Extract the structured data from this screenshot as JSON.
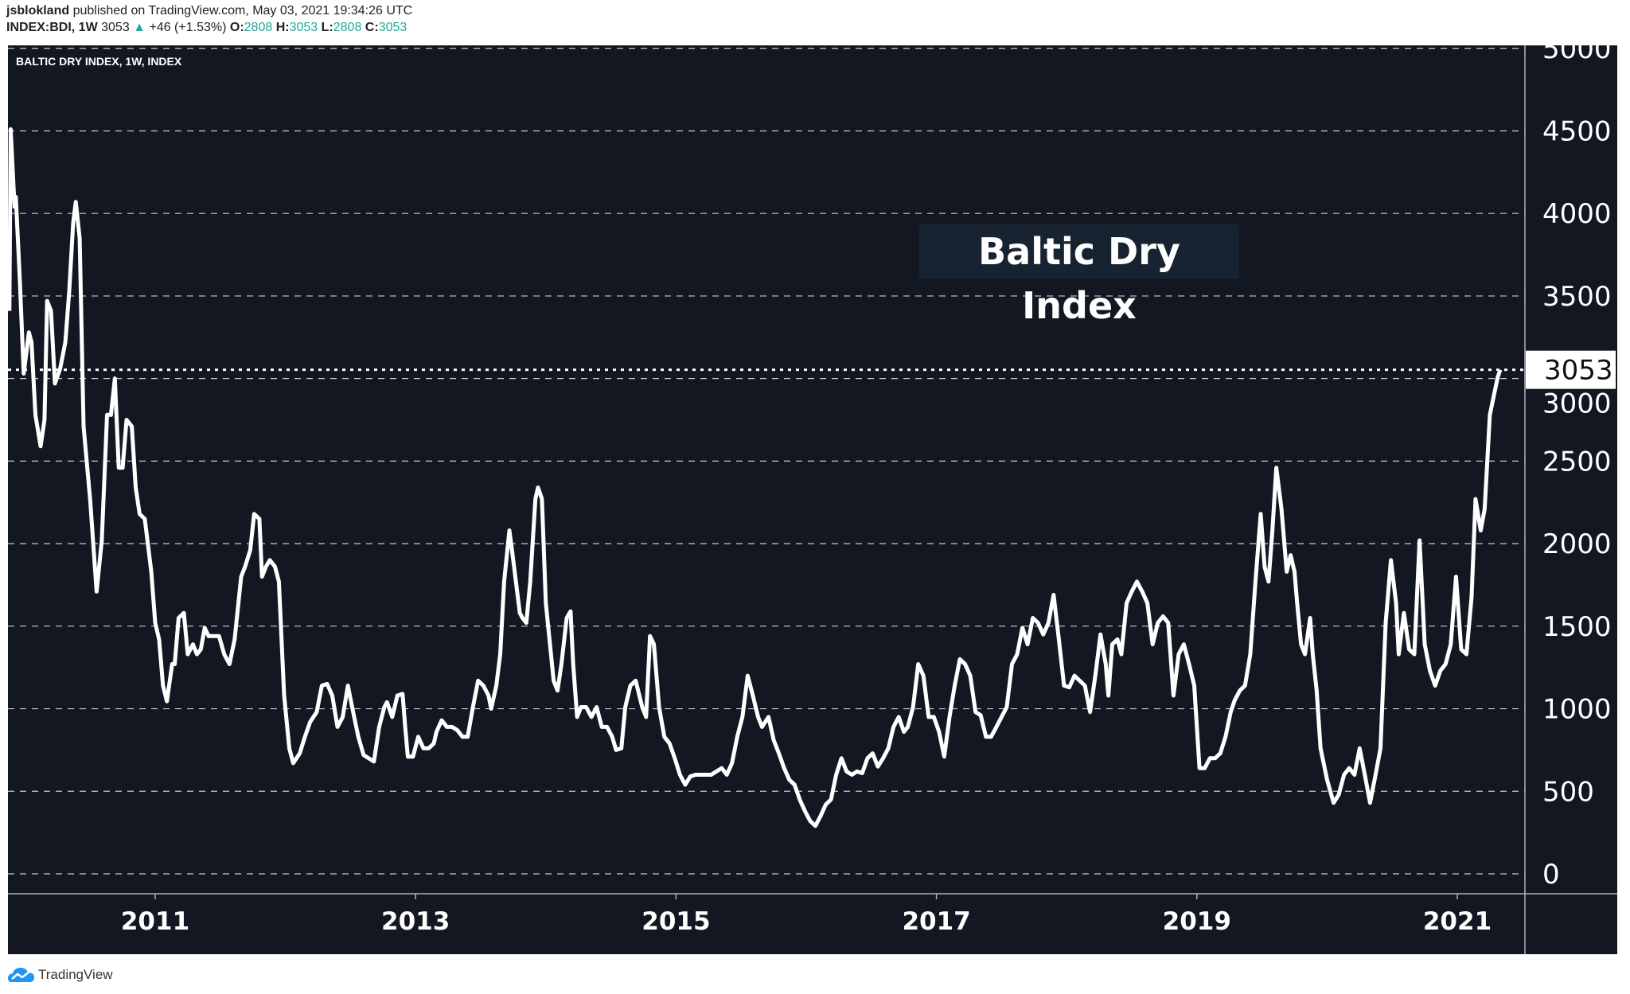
{
  "header": {
    "author": "jsblokland",
    "published_text": "published on TradingView.com, May 03, 2021 19:34:26 UTC",
    "symbol": "INDEX:BDI, 1W",
    "last": "3053",
    "change": "+46 (+1.53%)",
    "o_label": "O:",
    "o": "2808",
    "h_label": "H:",
    "h": "3053",
    "l_label": "L:",
    "l": "2808",
    "c_label": "C:",
    "c": "3053",
    "up_icon": "triangle-up-icon"
  },
  "legend": "BALTIC DRY INDEX, 1W, INDEX",
  "annotation": "Baltic Dry Index",
  "brand": "TradingView",
  "colors": {
    "background": "#131722",
    "line": "#ffffff",
    "up": "#26a69a",
    "annotation_bg": "#172330",
    "brand_blue": "#2196f3"
  },
  "chart_data": {
    "type": "line",
    "title": "",
    "xlabel": "",
    "ylabel": "",
    "xlim": [
      2009.87,
      2021.33
    ],
    "ylim": [
      0,
      5000
    ],
    "grid": true,
    "y_ticks": [
      "0",
      "500",
      "1000",
      "1500",
      "2000",
      "2500",
      "3000",
      "3500",
      "4000",
      "4500",
      "5000"
    ],
    "x_ticks": [
      {
        "label": "2011",
        "year": 2011
      },
      {
        "label": "2013",
        "year": 2013
      },
      {
        "label": "2015",
        "year": 2015
      },
      {
        "label": "2017",
        "year": 2017
      },
      {
        "label": "2019",
        "year": 2019
      },
      {
        "label": "2021",
        "year": 2021
      }
    ],
    "last_value_label": "3053",
    "last_value": 3053,
    "points": [
      [
        2009.88,
        3410
      ],
      [
        2009.89,
        4510
      ],
      [
        2009.92,
        4040
      ],
      [
        2009.93,
        4100
      ],
      [
        2009.96,
        3600
      ],
      [
        2009.99,
        3030
      ],
      [
        2010.03,
        3280
      ],
      [
        2010.05,
        3220
      ],
      [
        2010.08,
        2780
      ],
      [
        2010.12,
        2590
      ],
      [
        2010.15,
        2750
      ],
      [
        2010.17,
        3470
      ],
      [
        2010.2,
        3410
      ],
      [
        2010.23,
        2970
      ],
      [
        2010.27,
        3060
      ],
      [
        2010.31,
        3220
      ],
      [
        2010.34,
        3530
      ],
      [
        2010.37,
        3940
      ],
      [
        2010.39,
        4070
      ],
      [
        2010.42,
        3850
      ],
      [
        2010.45,
        2710
      ],
      [
        2010.5,
        2270
      ],
      [
        2010.55,
        1710
      ],
      [
        2010.59,
        2020
      ],
      [
        2010.63,
        2780
      ],
      [
        2010.66,
        2780
      ],
      [
        2010.69,
        3000
      ],
      [
        2010.72,
        2460
      ],
      [
        2010.75,
        2460
      ],
      [
        2010.78,
        2750
      ],
      [
        2010.82,
        2710
      ],
      [
        2010.85,
        2340
      ],
      [
        2010.88,
        2180
      ],
      [
        2010.92,
        2150
      ],
      [
        2010.97,
        1830
      ],
      [
        2011.0,
        1520
      ],
      [
        2011.03,
        1420
      ],
      [
        2011.06,
        1140
      ],
      [
        2011.09,
        1045
      ],
      [
        2011.13,
        1270
      ],
      [
        2011.15,
        1270
      ],
      [
        2011.18,
        1550
      ],
      [
        2011.22,
        1580
      ],
      [
        2011.25,
        1330
      ],
      [
        2011.29,
        1390
      ],
      [
        2011.32,
        1330
      ],
      [
        2011.35,
        1360
      ],
      [
        2011.38,
        1490
      ],
      [
        2011.41,
        1440
      ],
      [
        2011.45,
        1440
      ],
      [
        2011.49,
        1440
      ],
      [
        2011.53,
        1330
      ],
      [
        2011.57,
        1270
      ],
      [
        2011.61,
        1420
      ],
      [
        2011.66,
        1800
      ],
      [
        2011.69,
        1860
      ],
      [
        2011.73,
        1960
      ],
      [
        2011.76,
        2180
      ],
      [
        2011.8,
        2150
      ],
      [
        2011.82,
        1800
      ],
      [
        2011.85,
        1860
      ],
      [
        2011.88,
        1900
      ],
      [
        2011.92,
        1860
      ],
      [
        2011.95,
        1770
      ],
      [
        2011.99,
        1080
      ],
      [
        2012.03,
        760
      ],
      [
        2012.06,
        670
      ],
      [
        2012.11,
        730
      ],
      [
        2012.15,
        830
      ],
      [
        2012.19,
        920
      ],
      [
        2012.24,
        980
      ],
      [
        2012.28,
        1140
      ],
      [
        2012.32,
        1150
      ],
      [
        2012.36,
        1080
      ],
      [
        2012.4,
        890
      ],
      [
        2012.44,
        950
      ],
      [
        2012.48,
        1140
      ],
      [
        2012.52,
        980
      ],
      [
        2012.56,
        830
      ],
      [
        2012.6,
        720
      ],
      [
        2012.64,
        700
      ],
      [
        2012.68,
        680
      ],
      [
        2012.72,
        890
      ],
      [
        2012.76,
        1010
      ],
      [
        2012.78,
        1040
      ],
      [
        2012.82,
        950
      ],
      [
        2012.86,
        1080
      ],
      [
        2012.9,
        1090
      ],
      [
        2012.92,
        890
      ],
      [
        2012.94,
        710
      ],
      [
        2012.98,
        710
      ],
      [
        2013.02,
        830
      ],
      [
        2013.06,
        760
      ],
      [
        2013.1,
        760
      ],
      [
        2013.14,
        790
      ],
      [
        2013.16,
        860
      ],
      [
        2013.2,
        930
      ],
      [
        2013.24,
        890
      ],
      [
        2013.28,
        890
      ],
      [
        2013.32,
        870
      ],
      [
        2013.36,
        830
      ],
      [
        2013.4,
        830
      ],
      [
        2013.44,
        1010
      ],
      [
        2013.48,
        1170
      ],
      [
        2013.52,
        1140
      ],
      [
        2013.56,
        1080
      ],
      [
        2013.58,
        1000
      ],
      [
        2013.62,
        1140
      ],
      [
        2013.65,
        1330
      ],
      [
        2013.68,
        1770
      ],
      [
        2013.72,
        2080
      ],
      [
        2013.74,
        1960
      ],
      [
        2013.77,
        1770
      ],
      [
        2013.8,
        1580
      ],
      [
        2013.82,
        1550
      ],
      [
        2013.85,
        1520
      ],
      [
        2013.88,
        1770
      ],
      [
        2013.92,
        2270
      ],
      [
        2013.94,
        2340
      ],
      [
        2013.97,
        2270
      ],
      [
        2014.0,
        1640
      ],
      [
        2014.04,
        1330
      ],
      [
        2014.06,
        1170
      ],
      [
        2014.09,
        1110
      ],
      [
        2014.12,
        1270
      ],
      [
        2014.16,
        1550
      ],
      [
        2014.19,
        1590
      ],
      [
        2014.21,
        1270
      ],
      [
        2014.24,
        950
      ],
      [
        2014.27,
        1010
      ],
      [
        2014.31,
        1010
      ],
      [
        2014.35,
        950
      ],
      [
        2014.39,
        1010
      ],
      [
        2014.43,
        890
      ],
      [
        2014.47,
        890
      ],
      [
        2014.51,
        830
      ],
      [
        2014.54,
        750
      ],
      [
        2014.58,
        760
      ],
      [
        2014.61,
        1010
      ],
      [
        2014.65,
        1140
      ],
      [
        2014.69,
        1170
      ],
      [
        2014.74,
        1010
      ],
      [
        2014.77,
        950
      ],
      [
        2014.8,
        1440
      ],
      [
        2014.83,
        1390
      ],
      [
        2014.87,
        1010
      ],
      [
        2014.91,
        830
      ],
      [
        2014.95,
        790
      ],
      [
        2014.99,
        700
      ],
      [
        2015.03,
        600
      ],
      [
        2015.07,
        540
      ],
      [
        2015.11,
        590
      ],
      [
        2015.15,
        600
      ],
      [
        2015.19,
        600
      ],
      [
        2015.23,
        600
      ],
      [
        2015.27,
        600
      ],
      [
        2015.31,
        620
      ],
      [
        2015.35,
        640
      ],
      [
        2015.39,
        600
      ],
      [
        2015.43,
        670
      ],
      [
        2015.47,
        830
      ],
      [
        2015.51,
        950
      ],
      [
        2015.55,
        1200
      ],
      [
        2015.59,
        1080
      ],
      [
        2015.63,
        950
      ],
      [
        2015.66,
        890
      ],
      [
        2015.71,
        950
      ],
      [
        2015.75,
        810
      ],
      [
        2015.79,
        730
      ],
      [
        2015.83,
        640
      ],
      [
        2015.87,
        570
      ],
      [
        2015.91,
        540
      ],
      [
        2015.95,
        450
      ],
      [
        2015.99,
        380
      ],
      [
        2016.03,
        320
      ],
      [
        2016.07,
        290
      ],
      [
        2016.11,
        350
      ],
      [
        2016.15,
        420
      ],
      [
        2016.19,
        450
      ],
      [
        2016.23,
        600
      ],
      [
        2016.27,
        700
      ],
      [
        2016.31,
        620
      ],
      [
        2016.35,
        600
      ],
      [
        2016.39,
        620
      ],
      [
        2016.43,
        610
      ],
      [
        2016.47,
        700
      ],
      [
        2016.51,
        730
      ],
      [
        2016.55,
        650
      ],
      [
        2016.59,
        700
      ],
      [
        2016.63,
        760
      ],
      [
        2016.67,
        890
      ],
      [
        2016.71,
        950
      ],
      [
        2016.75,
        860
      ],
      [
        2016.78,
        890
      ],
      [
        2016.82,
        1010
      ],
      [
        2016.86,
        1270
      ],
      [
        2016.9,
        1200
      ],
      [
        2016.94,
        950
      ],
      [
        2016.98,
        950
      ],
      [
        2017.02,
        860
      ],
      [
        2017.06,
        710
      ],
      [
        2017.1,
        950
      ],
      [
        2017.14,
        1140
      ],
      [
        2017.18,
        1300
      ],
      [
        2017.22,
        1270
      ],
      [
        2017.26,
        1200
      ],
      [
        2017.3,
        980
      ],
      [
        2017.34,
        960
      ],
      [
        2017.38,
        830
      ],
      [
        2017.42,
        830
      ],
      [
        2017.46,
        890
      ],
      [
        2017.5,
        950
      ],
      [
        2017.54,
        1010
      ],
      [
        2017.58,
        1270
      ],
      [
        2017.62,
        1330
      ],
      [
        2017.66,
        1490
      ],
      [
        2017.7,
        1390
      ],
      [
        2017.74,
        1550
      ],
      [
        2017.78,
        1520
      ],
      [
        2017.82,
        1450
      ],
      [
        2017.86,
        1520
      ],
      [
        2017.9,
        1690
      ],
      [
        2017.94,
        1420
      ],
      [
        2017.98,
        1140
      ],
      [
        2018.02,
        1130
      ],
      [
        2018.06,
        1200
      ],
      [
        2018.1,
        1170
      ],
      [
        2018.14,
        1140
      ],
      [
        2018.18,
        980
      ],
      [
        2018.22,
        1200
      ],
      [
        2018.26,
        1450
      ],
      [
        2018.3,
        1270
      ],
      [
        2018.32,
        1080
      ],
      [
        2018.35,
        1390
      ],
      [
        2018.39,
        1420
      ],
      [
        2018.42,
        1330
      ],
      [
        2018.46,
        1640
      ],
      [
        2018.5,
        1710
      ],
      [
        2018.54,
        1770
      ],
      [
        2018.58,
        1710
      ],
      [
        2018.62,
        1640
      ],
      [
        2018.66,
        1390
      ],
      [
        2018.7,
        1520
      ],
      [
        2018.74,
        1560
      ],
      [
        2018.78,
        1520
      ],
      [
        2018.82,
        1080
      ],
      [
        2018.86,
        1330
      ],
      [
        2018.9,
        1390
      ],
      [
        2018.94,
        1270
      ],
      [
        2018.98,
        1140
      ],
      [
        2019.02,
        640
      ],
      [
        2019.06,
        640
      ],
      [
        2019.1,
        700
      ],
      [
        2019.14,
        700
      ],
      [
        2019.18,
        730
      ],
      [
        2019.22,
        830
      ],
      [
        2019.26,
        980
      ],
      [
        2019.29,
        1050
      ],
      [
        2019.33,
        1110
      ],
      [
        2019.37,
        1140
      ],
      [
        2019.41,
        1330
      ],
      [
        2019.45,
        1770
      ],
      [
        2019.49,
        2180
      ],
      [
        2019.52,
        1860
      ],
      [
        2019.55,
        1770
      ],
      [
        2019.58,
        2080
      ],
      [
        2019.61,
        2460
      ],
      [
        2019.65,
        2210
      ],
      [
        2019.69,
        1830
      ],
      [
        2019.72,
        1930
      ],
      [
        2019.75,
        1830
      ],
      [
        2019.77,
        1640
      ],
      [
        2019.8,
        1390
      ],
      [
        2019.83,
        1330
      ],
      [
        2019.87,
        1550
      ],
      [
        2019.89,
        1330
      ],
      [
        2019.92,
        1110
      ],
      [
        2019.95,
        760
      ],
      [
        2020.0,
        570
      ],
      [
        2020.05,
        430
      ],
      [
        2020.09,
        480
      ],
      [
        2020.13,
        600
      ],
      [
        2020.17,
        640
      ],
      [
        2020.21,
        600
      ],
      [
        2020.25,
        760
      ],
      [
        2020.29,
        600
      ],
      [
        2020.33,
        430
      ],
      [
        2020.37,
        590
      ],
      [
        2020.41,
        760
      ],
      [
        2020.45,
        1520
      ],
      [
        2020.49,
        1900
      ],
      [
        2020.53,
        1640
      ],
      [
        2020.55,
        1330
      ],
      [
        2020.59,
        1580
      ],
      [
        2020.63,
        1360
      ],
      [
        2020.67,
        1330
      ],
      [
        2020.71,
        2020
      ],
      [
        2020.75,
        1390
      ],
      [
        2020.79,
        1230
      ],
      [
        2020.83,
        1140
      ],
      [
        2020.87,
        1230
      ],
      [
        2020.91,
        1270
      ],
      [
        2020.95,
        1390
      ],
      [
        2020.99,
        1800
      ],
      [
        2021.03,
        1360
      ],
      [
        2021.07,
        1330
      ],
      [
        2021.11,
        1680
      ],
      [
        2021.14,
        2270
      ],
      [
        2021.18,
        2080
      ],
      [
        2021.21,
        2210
      ],
      [
        2021.25,
        2780
      ],
      [
        2021.31,
        3007
      ],
      [
        2021.33,
        3053
      ]
    ]
  }
}
